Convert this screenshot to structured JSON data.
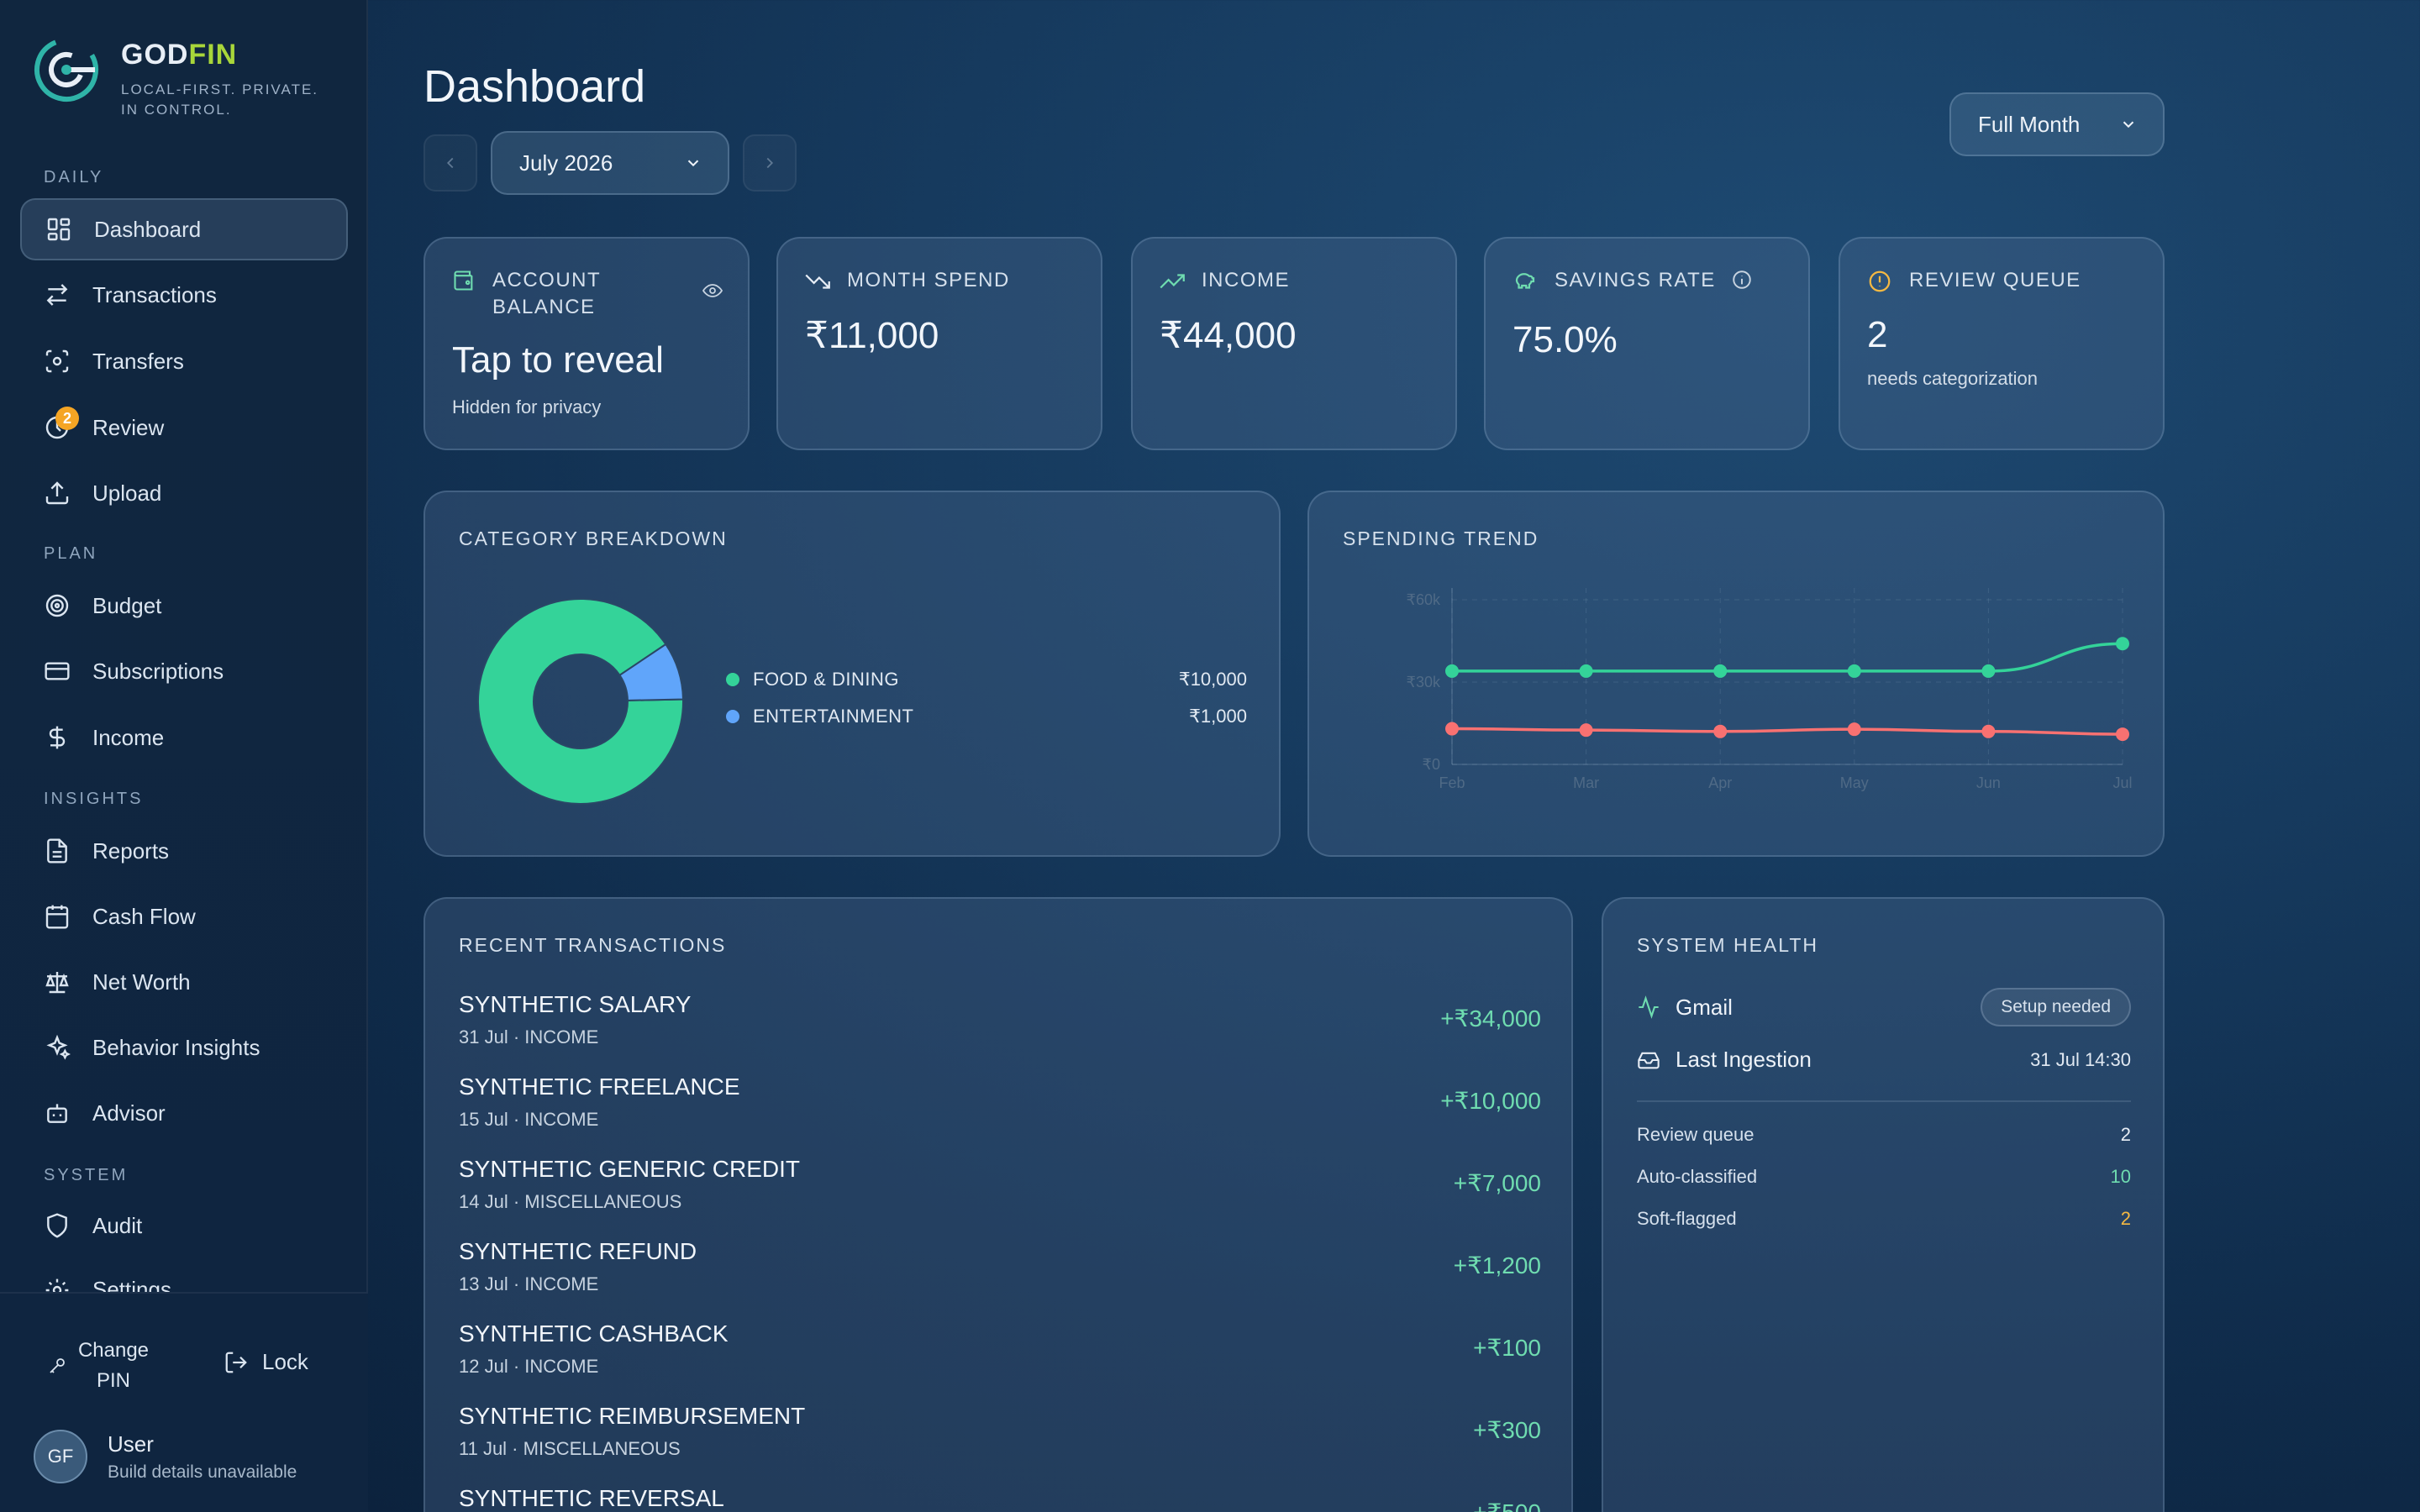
{
  "brand": {
    "name_a": "GOD",
    "name_b": "FIN",
    "tagline": "LOCAL-FIRST. PRIVATE. IN CONTROL."
  },
  "sidebar": {
    "sections": [
      "DAILY",
      "PLAN",
      "INSIGHTS",
      "SYSTEM"
    ],
    "items": [
      {
        "label": "Dashboard",
        "icon": "dashboard-icon"
      },
      {
        "label": "Transactions",
        "icon": "arrows-left-right-icon"
      },
      {
        "label": "Transfers",
        "icon": "scan-icon"
      },
      {
        "label": "Review",
        "icon": "review-icon",
        "badge": "2"
      },
      {
        "label": "Upload",
        "icon": "upload-icon"
      },
      {
        "label": "Budget",
        "icon": "target-icon"
      },
      {
        "label": "Subscriptions",
        "icon": "card-icon"
      },
      {
        "label": "Income",
        "icon": "dollar-icon"
      },
      {
        "label": "Reports",
        "icon": "file-icon"
      },
      {
        "label": "Cash Flow",
        "icon": "calendar-icon"
      },
      {
        "label": "Net Worth",
        "icon": "scale-icon"
      },
      {
        "label": "Behavior Insights",
        "icon": "sparkles-icon"
      },
      {
        "label": "Advisor",
        "icon": "bot-icon"
      },
      {
        "label": "Audit",
        "icon": "shield-icon"
      },
      {
        "label": "Settings",
        "icon": "gear-icon"
      }
    ],
    "change_pin": "Change PIN",
    "lock": "Lock",
    "user": {
      "initials": "GF",
      "name": "User",
      "build": "Build details unavailable"
    }
  },
  "header": {
    "title": "Dashboard",
    "month": "July 2026",
    "range": "Full Month"
  },
  "kpis": {
    "balance": {
      "label": "ACCOUNT BALANCE",
      "value": "Tap to reveal",
      "sub": "Hidden for privacy"
    },
    "spend": {
      "label": "MONTH SPEND",
      "value": "₹11,000"
    },
    "income": {
      "label": "INCOME",
      "value": "₹44,000"
    },
    "savings": {
      "label": "SAVINGS RATE",
      "value": "75.0%"
    },
    "review": {
      "label": "REVIEW QUEUE",
      "value": "2",
      "sub": "needs categorization"
    }
  },
  "category_breakdown": {
    "title": "CATEGORY BREAKDOWN",
    "items": [
      {
        "name": "FOOD & DINING",
        "value": "₹10,000",
        "amount": 10000,
        "color": "#34d399"
      },
      {
        "name": "ENTERTAINMENT",
        "value": "₹1,000",
        "amount": 1000,
        "color": "#60a5fa"
      }
    ]
  },
  "spending_trend": {
    "title": "SPENDING TREND"
  },
  "chart_data": {
    "type": "line",
    "x": [
      "Feb",
      "Mar",
      "Apr",
      "May",
      "Jun",
      "Jul"
    ],
    "yticks": [
      "₹0",
      "₹30k",
      "₹60k"
    ],
    "ylim": [
      0,
      60000
    ],
    "series": [
      {
        "color": "#34d399",
        "values": [
          34000,
          34000,
          34000,
          34000,
          34000,
          44000
        ]
      },
      {
        "color": "#f87171",
        "values": [
          13000,
          12500,
          12000,
          12800,
          12000,
          11000
        ]
      }
    ]
  },
  "recent": {
    "title": "RECENT TRANSACTIONS",
    "rows": [
      {
        "name": "SYNTHETIC SALARY",
        "meta": "31 Jul · INCOME",
        "amount": "+₹34,000"
      },
      {
        "name": "SYNTHETIC FREELANCE",
        "meta": "15 Jul · INCOME",
        "amount": "+₹10,000"
      },
      {
        "name": "SYNTHETIC GENERIC CREDIT",
        "meta": "14 Jul · MISCELLANEOUS",
        "amount": "+₹7,000"
      },
      {
        "name": "SYNTHETIC REFUND",
        "meta": "13 Jul · INCOME",
        "amount": "+₹1,200"
      },
      {
        "name": "SYNTHETIC CASHBACK",
        "meta": "12 Jul · INCOME",
        "amount": "+₹100"
      },
      {
        "name": "SYNTHETIC REIMBURSEMENT",
        "meta": "11 Jul · MISCELLANEOUS",
        "amount": "+₹300"
      },
      {
        "name": "SYNTHETIC REVERSAL",
        "meta": "",
        "amount": "+₹500"
      }
    ]
  },
  "health": {
    "title": "SYSTEM HEALTH",
    "gmail": "Gmail",
    "gmail_status": "Setup needed",
    "ingestion": "Last Ingestion",
    "ingestion_time": "31 Jul 14:30",
    "stats": [
      {
        "label": "Review queue",
        "value": "2",
        "color": "#e8eef6"
      },
      {
        "label": "Auto-classified",
        "value": "10",
        "color": "#6fdcb0"
      },
      {
        "label": "Soft-flagged",
        "value": "2",
        "color": "#f5b942"
      }
    ]
  }
}
